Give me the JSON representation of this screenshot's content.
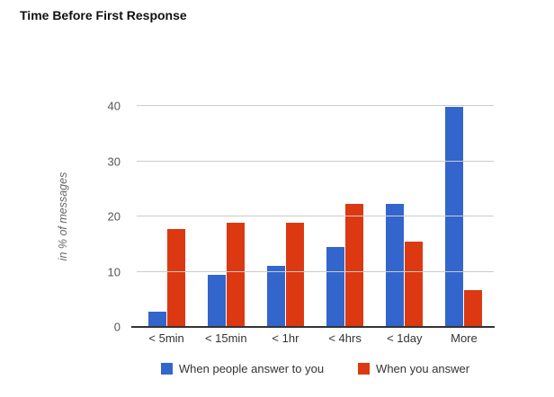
{
  "page": {
    "title": "Time Before First Response"
  },
  "chart_data": {
    "type": "bar",
    "title": "Time Before First Response",
    "xlabel": "",
    "ylabel": "in % of messages",
    "ylim": [
      0,
      40
    ],
    "yticks": [
      0,
      10,
      20,
      30,
      40
    ],
    "grid": true,
    "legend_position": "bottom",
    "categories": [
      "< 5min",
      "< 15min",
      "< 1hr",
      "< 4hrs",
      "< 1day",
      "More"
    ],
    "series": [
      {
        "name": "When people answer to you",
        "color": "#3366CC",
        "values": [
          2.8,
          9.4,
          11,
          14.5,
          22.2,
          39.8
        ]
      },
      {
        "name": "When you answer",
        "color": "#DC3912",
        "values": [
          17.7,
          18.8,
          18.8,
          22.2,
          15.5,
          6.6
        ]
      }
    ],
    "colors": {
      "gridline": "#CCCCCC",
      "axis_line": "#333333",
      "tick_text": "#555555",
      "category_text": "#333333",
      "legend_text": "#333333",
      "title_text": "#111111",
      "ylabel_text": "#666666"
    }
  }
}
